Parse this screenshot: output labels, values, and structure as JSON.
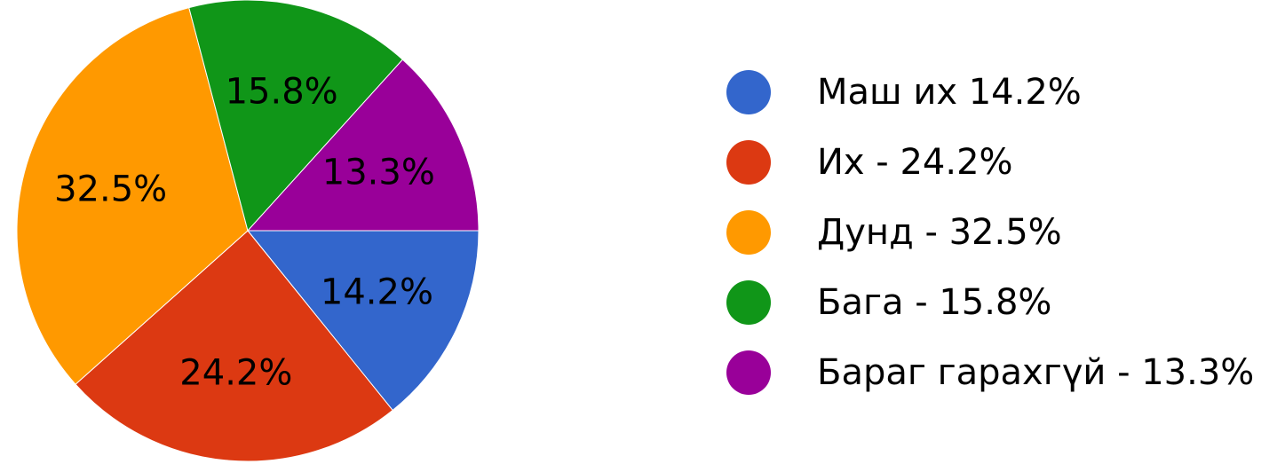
{
  "chart_data": {
    "type": "pie",
    "title": "",
    "legend_position": "right",
    "slices": [
      {
        "legend": "Маш их 14.2%",
        "value": 14.2,
        "label": "14.2%",
        "color": "#3366cc"
      },
      {
        "legend": "Их - 24.2%",
        "value": 24.2,
        "label": "24.2%",
        "color": "#dc3912"
      },
      {
        "legend": "Дунд - 32.5%",
        "value": 32.5,
        "label": "32.5%",
        "color": "#ff9900"
      },
      {
        "legend": "Бага - 15.8%",
        "value": 15.8,
        "label": "15.8%",
        "color": "#109618"
      },
      {
        "legend": "Бараг гарахгүй - 13.3%",
        "value": 13.3,
        "label": "13.3%",
        "color": "#990099"
      }
    ]
  }
}
